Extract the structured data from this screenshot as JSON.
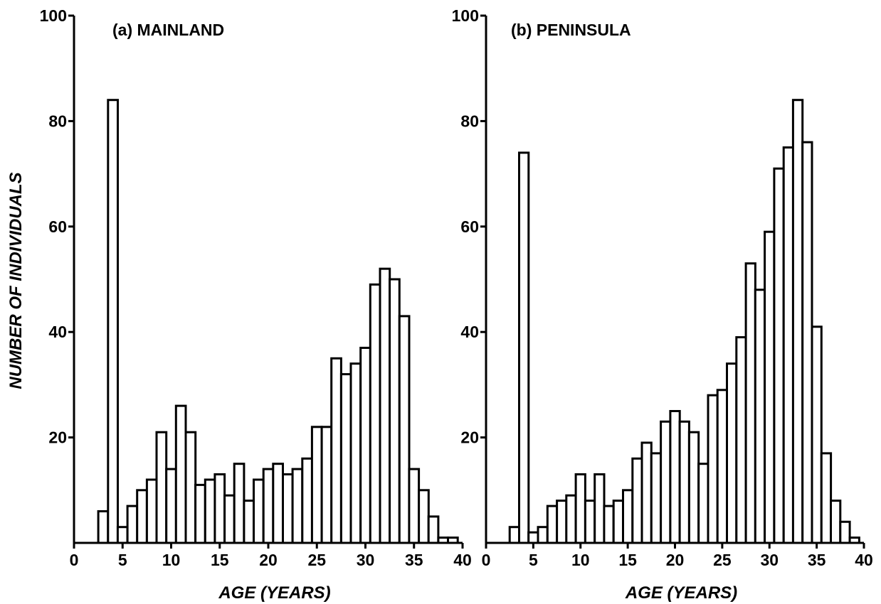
{
  "ylabel": "NUMBER OF INDIVIDUALS",
  "chart_data": [
    {
      "type": "bar",
      "title": "(a) MAINLAND",
      "xlabel": "AGE (YEARS)",
      "ylabel": "NUMBER OF INDIVIDUALS",
      "xlim": [
        0,
        40
      ],
      "ylim": [
        0,
        100
      ],
      "x_ticks": [
        "0",
        "5",
        "10",
        "15",
        "20",
        "25",
        "30",
        "35",
        "40"
      ],
      "y_ticks": [
        "20",
        "40",
        "60",
        "80",
        "100"
      ],
      "grid": false,
      "x": [
        3,
        4,
        5,
        6,
        7,
        8,
        9,
        10,
        11,
        12,
        13,
        14,
        15,
        16,
        17,
        18,
        19,
        20,
        21,
        22,
        23,
        24,
        25,
        26,
        27,
        28,
        29,
        30,
        31,
        32,
        33,
        34,
        35,
        36,
        37,
        38,
        39
      ],
      "values": [
        6,
        84,
        3,
        7,
        10,
        12,
        21,
        14,
        26,
        21,
        11,
        12,
        13,
        9,
        15,
        8,
        12,
        14,
        15,
        13,
        14,
        16,
        22,
        22,
        35,
        32,
        34,
        37,
        49,
        52,
        50,
        43,
        14,
        10,
        5,
        1,
        1
      ]
    },
    {
      "type": "bar",
      "title": "(b) PENINSULA",
      "xlabel": "AGE (YEARS)",
      "ylabel": "",
      "xlim": [
        0,
        40
      ],
      "ylim": [
        0,
        100
      ],
      "x_ticks": [
        "0",
        "5",
        "10",
        "15",
        "20",
        "25",
        "30",
        "35",
        "40"
      ],
      "y_ticks": [
        "20",
        "40",
        "60",
        "80",
        "100"
      ],
      "grid": false,
      "x": [
        3,
        4,
        5,
        6,
        7,
        8,
        9,
        10,
        11,
        12,
        13,
        14,
        15,
        16,
        17,
        18,
        19,
        20,
        21,
        22,
        23,
        24,
        25,
        26,
        27,
        28,
        29,
        30,
        31,
        32,
        33,
        34,
        35,
        36,
        37,
        38,
        39
      ],
      "values": [
        3,
        74,
        2,
        3,
        7,
        8,
        9,
        13,
        8,
        13,
        7,
        8,
        10,
        16,
        19,
        17,
        23,
        25,
        23,
        21,
        15,
        28,
        29,
        34,
        39,
        53,
        48,
        59,
        71,
        75,
        84,
        76,
        41,
        17,
        8,
        4,
        1
      ]
    }
  ]
}
